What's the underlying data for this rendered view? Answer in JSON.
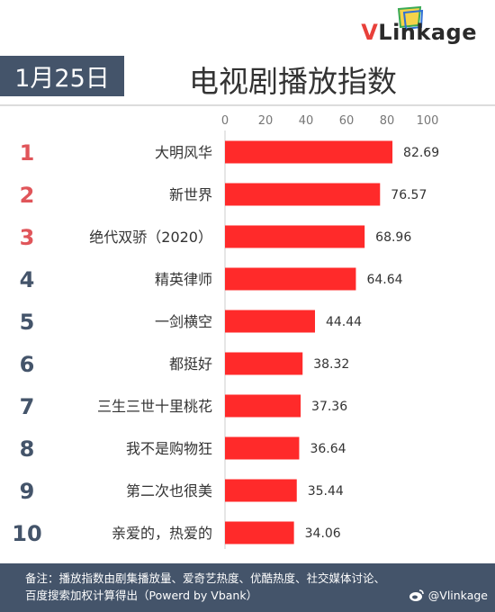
{
  "header": {
    "date": "1月25日",
    "title": "电视剧播放指数",
    "brand_v": "V",
    "brand_rest": "Linkage"
  },
  "chart_data": {
    "type": "bar",
    "orientation": "horizontal",
    "title": "电视剧播放指数",
    "ranks": [
      "1",
      "2",
      "3",
      "4",
      "5",
      "6",
      "7",
      "8",
      "9",
      "10"
    ],
    "categories": [
      "大明风华",
      "新世界",
      "绝代双骄（2020）",
      "精英律师",
      "一剑横空",
      "都挺好",
      "三生三世十里桃花",
      "我不是购物狂",
      "第二次也很美",
      "亲爱的，热爱的"
    ],
    "values": [
      82.69,
      76.57,
      68.96,
      64.64,
      44.44,
      38.32,
      37.36,
      36.64,
      35.44,
      34.06
    ],
    "value_labels": [
      "82.69",
      "76.57",
      "68.96",
      "64.64",
      "44.44",
      "38.32",
      "37.36",
      "36.64",
      "35.44",
      "34.06"
    ],
    "xlim": [
      0,
      100
    ],
    "x_ticks": [
      "0",
      "20",
      "40",
      "60",
      "80",
      "100"
    ],
    "axis_position": "top",
    "grid": false,
    "legend": "none",
    "colors": {
      "bar": "#ff2a2a",
      "rank_top": "#e0555a",
      "rank_rest": "#44546a",
      "label": "#333333",
      "tick": "#777777"
    }
  },
  "footer": {
    "line1": "备注：播放指数由剧集播放量、爱奇艺热度、优酷热度、社交媒体讨论、",
    "line2": "百度搜索加权计算得出（Powerd by Vbank）",
    "credit": "@Vlinkage",
    "credit_icon": "weibo-icon"
  }
}
